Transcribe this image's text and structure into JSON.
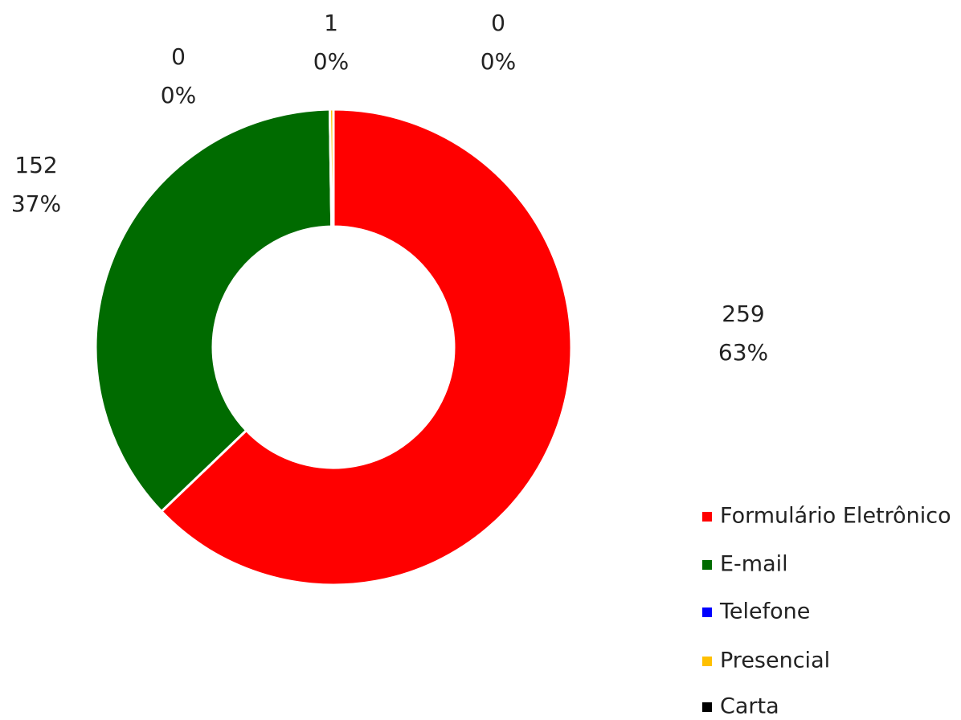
{
  "chart_data": {
    "type": "donut",
    "categories": [
      "Formulário Eletrônico",
      "E-mail",
      "Telefone",
      "Presencial",
      "Carta"
    ],
    "values": [
      259,
      152,
      0,
      1,
      0
    ],
    "percent_labels": [
      "63%",
      "37%",
      "0%",
      "0%",
      "0%"
    ],
    "colors": [
      "#ff0000",
      "#006b00",
      "#0000ff",
      "#ffc000",
      "#000000"
    ],
    "legend": "right"
  }
}
